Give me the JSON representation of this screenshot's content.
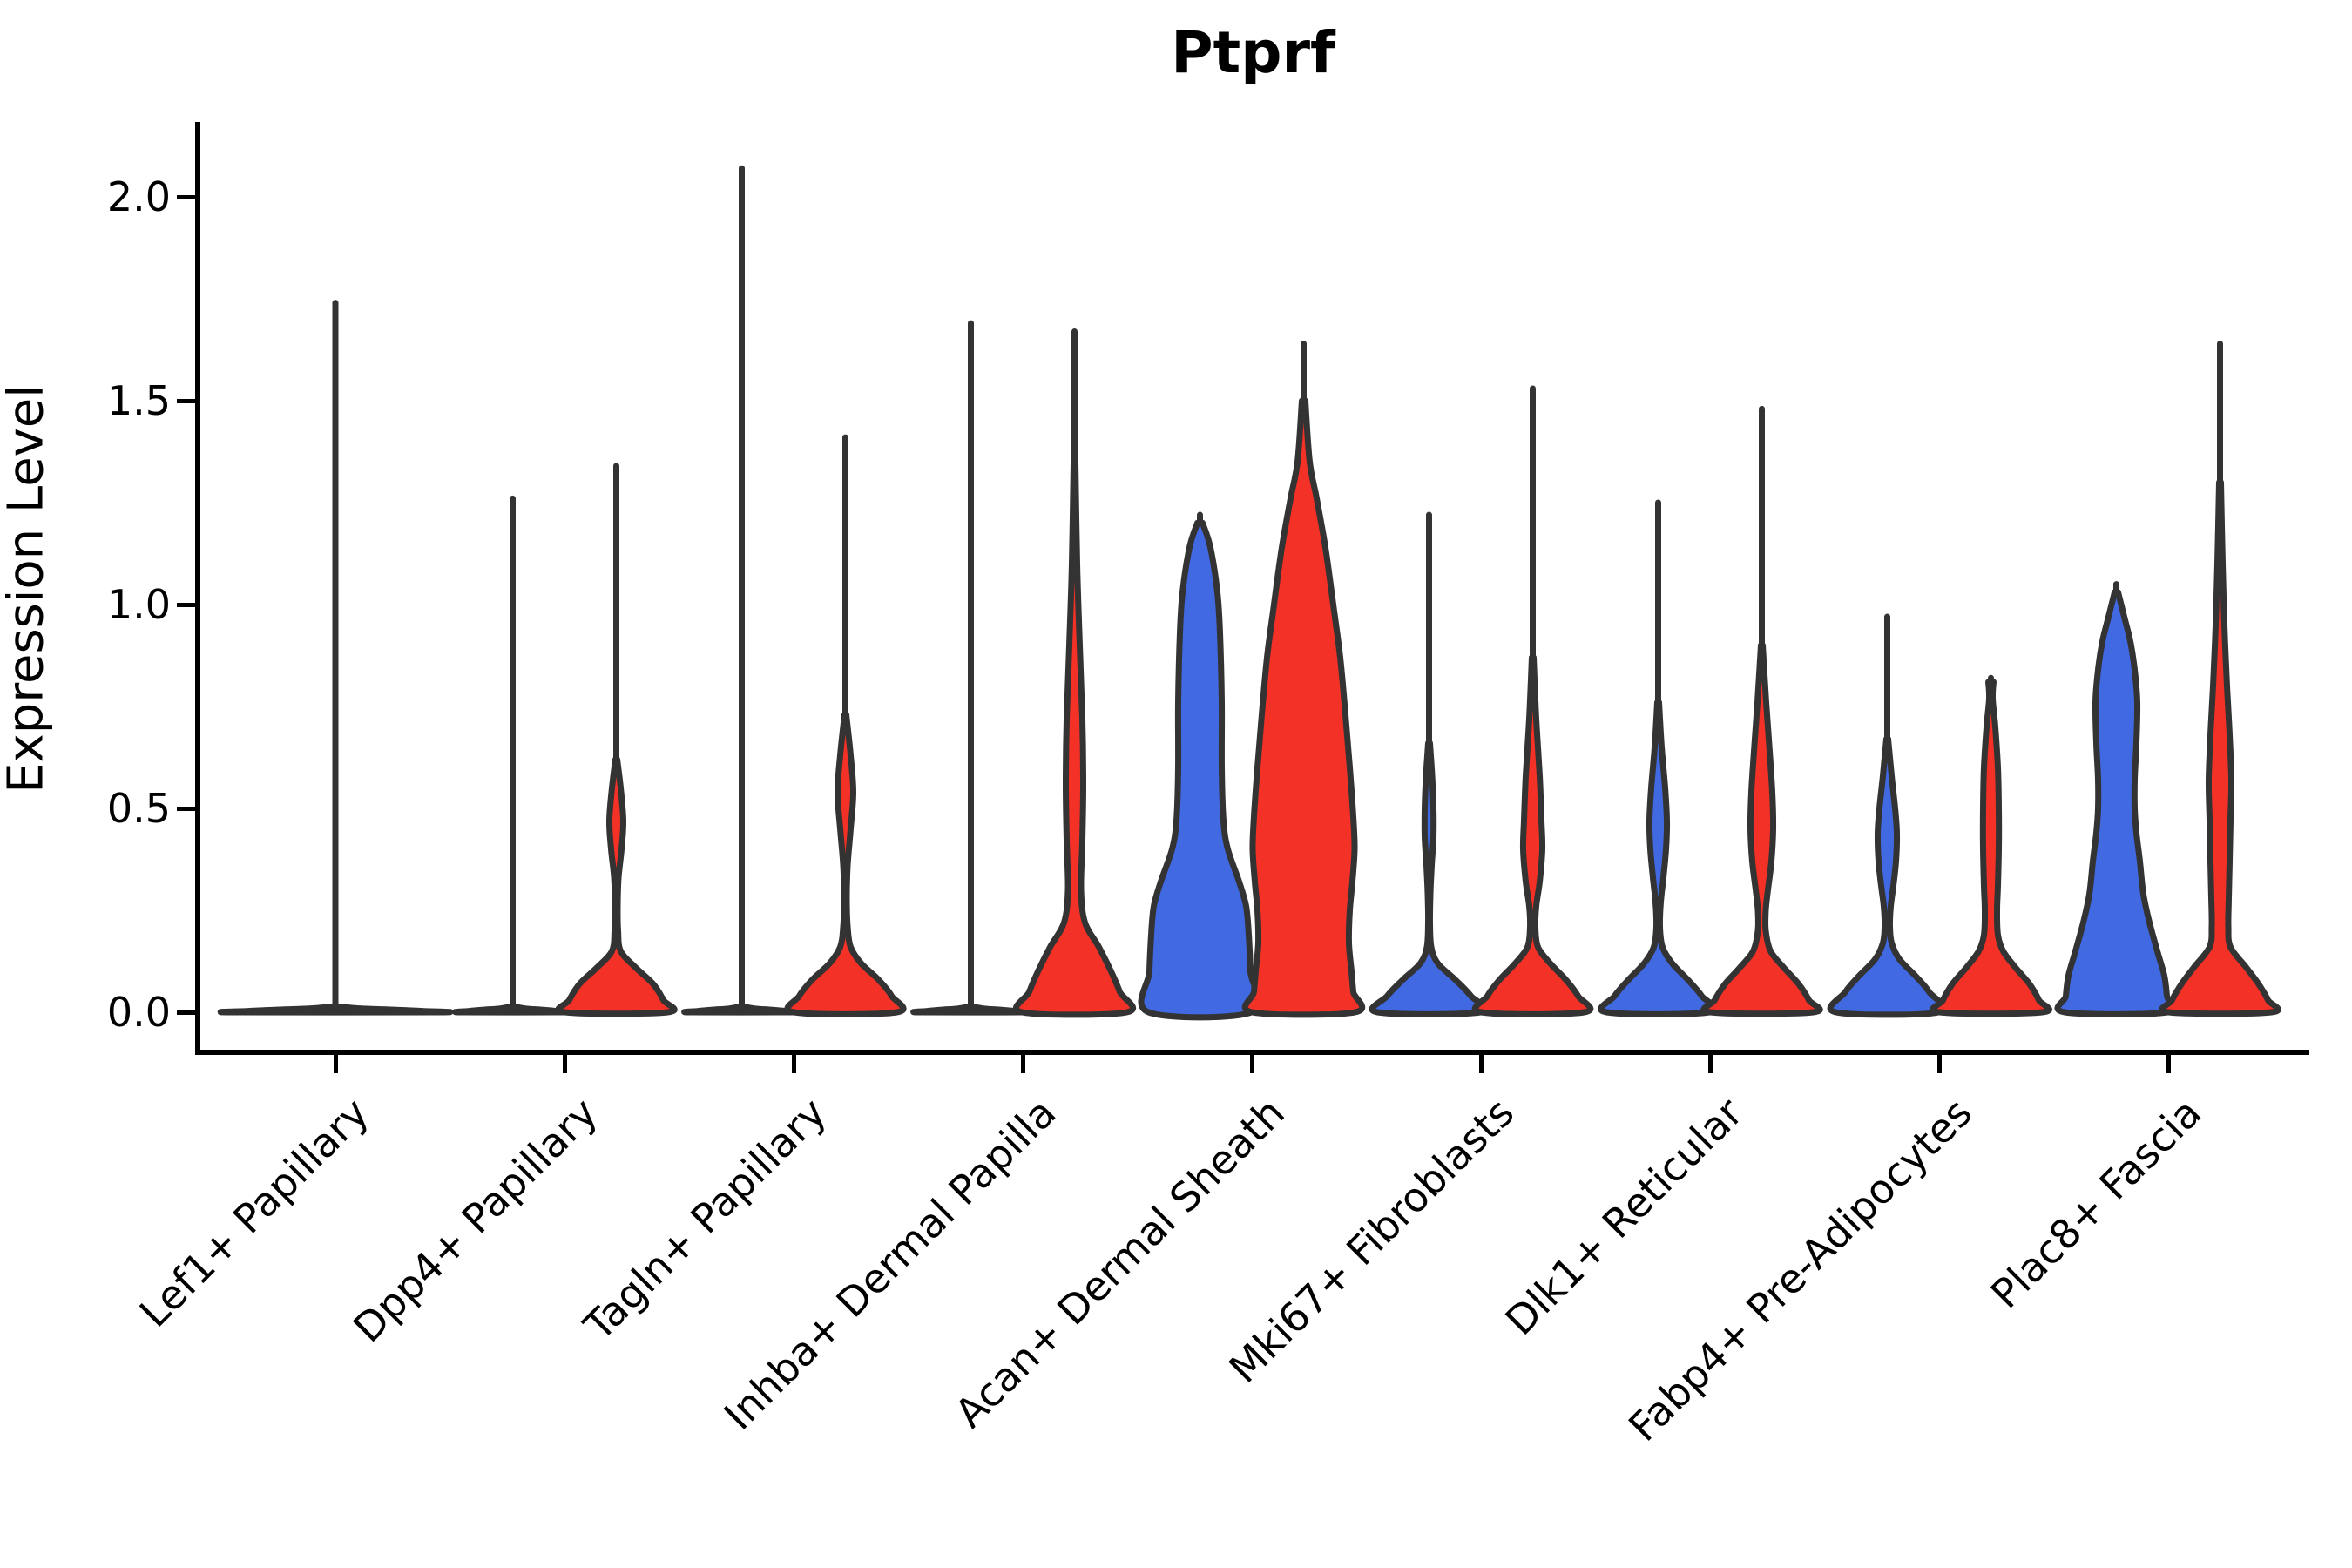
{
  "title": "Ptprf",
  "axes": {
    "y_label": "Expression Level",
    "y_ticks": [
      "0.0",
      "0.5",
      "1.0",
      "1.5",
      "2.0"
    ],
    "y_tick_values": [
      0.0,
      0.5,
      1.0,
      1.5,
      2.0
    ],
    "x_categories": [
      "Lef1+ Papillary",
      "Dpp4+ Papillary",
      "Tagln+ Papillary",
      "Inhba+ Dermal Papilla",
      "Acan+ Dermal Sheath",
      "Mki67+ Fibroblasts",
      "Dlk1+ Reticular",
      "Fabp4+ Pre-Adipocytes",
      "Plac8+ Fascia"
    ]
  },
  "colors": {
    "blue_fill": "#4169E1",
    "red_fill": "#F43127",
    "outline": "#333333",
    "axis": "#000000"
  },
  "chart_data": {
    "type": "violin",
    "title": "Ptprf",
    "ylabel": "Expression Level",
    "ylim": [
      0,
      2.18
    ],
    "grid": false,
    "legend": "none",
    "categories": [
      "Lef1+ Papillary",
      "Dpp4+ Papillary",
      "Tagln+ Papillary",
      "Inhba+ Dermal Papilla",
      "Acan+ Dermal Sheath",
      "Mki67+ Fibroblasts",
      "Dlk1+ Reticular",
      "Fabp4+ Pre-Adipocytes",
      "Plac8+ Fascia"
    ],
    "series": [
      {
        "name": "group-blue",
        "color": "#4169E1",
        "max_expression": [
          1.74,
          1.26,
          2.07,
          1.69,
          1.22,
          1.22,
          1.25,
          0.97,
          1.05
        ]
      },
      {
        "name": "group-red",
        "color": "#F43127",
        "max_expression": [
          1.74,
          1.34,
          1.41,
          1.67,
          1.64,
          1.53,
          1.48,
          0.82,
          1.64
        ]
      }
    ],
    "violins": [
      {
        "cat": 0,
        "group": "single",
        "stem_top": 1.74,
        "profile": [
          [
            0.014,
            2
          ],
          [
            0.009,
            30
          ],
          [
            0.006,
            70
          ],
          [
            0.003,
            100
          ],
          [
            0,
            118
          ]
        ]
      },
      {
        "cat": 1,
        "group": "blue",
        "stem_top": 1.26,
        "profile": [
          [
            0.014,
            1.5
          ],
          [
            0.009,
            15
          ],
          [
            0.006,
            35
          ],
          [
            0.003,
            50
          ],
          [
            0,
            59
          ]
        ]
      },
      {
        "cat": 1,
        "group": "red",
        "stem_top": 1.34,
        "profile": [
          [
            0.62,
            1
          ],
          [
            0.55,
            5
          ],
          [
            0.47,
            8
          ],
          [
            0.4,
            6
          ],
          [
            0.33,
            2.5
          ],
          [
            0.26,
            1.5
          ],
          [
            0.2,
            2
          ],
          [
            0.15,
            5
          ],
          [
            0.11,
            22
          ],
          [
            0.07,
            42
          ],
          [
            0.03,
            54
          ],
          [
            0,
            59
          ]
        ]
      },
      {
        "cat": 2,
        "group": "blue",
        "stem_top": 2.07,
        "profile": [
          [
            0.014,
            1.5
          ],
          [
            0.009,
            15
          ],
          [
            0.006,
            35
          ],
          [
            0.003,
            50
          ],
          [
            0,
            59
          ]
        ]
      },
      {
        "cat": 2,
        "group": "red",
        "stem_top": 1.41,
        "profile": [
          [
            0.73,
            1
          ],
          [
            0.63,
            6
          ],
          [
            0.54,
            9
          ],
          [
            0.45,
            6
          ],
          [
            0.36,
            2.5
          ],
          [
            0.28,
            1.5
          ],
          [
            0.21,
            2.5
          ],
          [
            0.16,
            6
          ],
          [
            0.12,
            18
          ],
          [
            0.08,
            38
          ],
          [
            0.04,
            53
          ],
          [
            0,
            59
          ]
        ]
      },
      {
        "cat": 3,
        "group": "blue",
        "stem_top": 1.69,
        "profile": [
          [
            0.014,
            1.5
          ],
          [
            0.009,
            15
          ],
          [
            0.006,
            35
          ],
          [
            0.003,
            50
          ],
          [
            0,
            59
          ]
        ]
      },
      {
        "cat": 3,
        "group": "red",
        "stem_top": 1.67,
        "profile": [
          [
            1.35,
            1
          ],
          [
            1.1,
            3
          ],
          [
            0.9,
            6
          ],
          [
            0.72,
            9
          ],
          [
            0.56,
            10
          ],
          [
            0.42,
            9
          ],
          [
            0.3,
            7.5
          ],
          [
            0.22,
            12
          ],
          [
            0.16,
            28
          ],
          [
            0.1,
            42
          ],
          [
            0.05,
            52
          ],
          [
            0,
            60
          ]
        ]
      },
      {
        "cat": 4,
        "group": "blue",
        "stem_top": 1.22,
        "profile": [
          [
            1.2,
            3
          ],
          [
            1.14,
            12
          ],
          [
            1.03,
            20
          ],
          [
            0.93,
            23
          ],
          [
            0.76,
            25
          ],
          [
            0.6,
            25
          ],
          [
            0.47,
            27
          ],
          [
            0.4,
            32
          ],
          [
            0.32,
            45
          ],
          [
            0.26,
            53
          ],
          [
            0.19,
            56
          ],
          [
            0.1,
            58
          ],
          [
            0,
            59
          ]
        ]
      },
      {
        "cat": 4,
        "group": "red",
        "stem_top": 1.64,
        "profile": [
          [
            1.5,
            2
          ],
          [
            1.35,
            7
          ],
          [
            1.26,
            15
          ],
          [
            1.14,
            25
          ],
          [
            1.0,
            34
          ],
          [
            0.87,
            42
          ],
          [
            0.73,
            48
          ],
          [
            0.6,
            53
          ],
          [
            0.48,
            57
          ],
          [
            0.4,
            58.5
          ],
          [
            0.32,
            56
          ],
          [
            0.25,
            53
          ],
          [
            0.17,
            52
          ],
          [
            0.1,
            55
          ],
          [
            0.05,
            57
          ],
          [
            0,
            59
          ]
        ]
      },
      {
        "cat": 5,
        "group": "blue",
        "stem_top": 1.22,
        "profile": [
          [
            0.66,
            1
          ],
          [
            0.58,
            3.5
          ],
          [
            0.5,
            5
          ],
          [
            0.43,
            5
          ],
          [
            0.36,
            3
          ],
          [
            0.29,
            1.5
          ],
          [
            0.22,
            1
          ],
          [
            0.16,
            2.5
          ],
          [
            0.12,
            10
          ],
          [
            0.08,
            30
          ],
          [
            0.04,
            48
          ],
          [
            0,
            59
          ]
        ]
      },
      {
        "cat": 5,
        "group": "red",
        "stem_top": 1.53,
        "profile": [
          [
            0.87,
            1
          ],
          [
            0.72,
            4
          ],
          [
            0.58,
            8
          ],
          [
            0.47,
            10
          ],
          [
            0.4,
            11
          ],
          [
            0.32,
            8
          ],
          [
            0.26,
            4
          ],
          [
            0.21,
            3
          ],
          [
            0.16,
            6
          ],
          [
            0.12,
            20
          ],
          [
            0.08,
            38
          ],
          [
            0.04,
            52
          ],
          [
            0,
            59
          ]
        ]
      },
      {
        "cat": 6,
        "group": "blue",
        "stem_top": 1.25,
        "profile": [
          [
            0.76,
            1
          ],
          [
            0.65,
            4
          ],
          [
            0.55,
            8
          ],
          [
            0.47,
            10
          ],
          [
            0.4,
            9
          ],
          [
            0.33,
            6
          ],
          [
            0.27,
            3
          ],
          [
            0.21,
            2
          ],
          [
            0.16,
            5
          ],
          [
            0.12,
            16
          ],
          [
            0.08,
            34
          ],
          [
            0.04,
            50
          ],
          [
            0,
            59
          ]
        ]
      },
      {
        "cat": 6,
        "group": "red",
        "stem_top": 1.48,
        "profile": [
          [
            0.9,
            1
          ],
          [
            0.76,
            5
          ],
          [
            0.64,
            9
          ],
          [
            0.54,
            12
          ],
          [
            0.45,
            13
          ],
          [
            0.37,
            11
          ],
          [
            0.3,
            7
          ],
          [
            0.25,
            4.5
          ],
          [
            0.2,
            4.5
          ],
          [
            0.15,
            10
          ],
          [
            0.11,
            25
          ],
          [
            0.07,
            42
          ],
          [
            0.03,
            54
          ],
          [
            0,
            59
          ]
        ]
      },
      {
        "cat": 7,
        "group": "blue",
        "stem_top": 0.97,
        "profile": [
          [
            0.67,
            1
          ],
          [
            0.58,
            5
          ],
          [
            0.5,
            9
          ],
          [
            0.44,
            11
          ],
          [
            0.37,
            10
          ],
          [
            0.31,
            7
          ],
          [
            0.26,
            4
          ],
          [
            0.21,
            3
          ],
          [
            0.17,
            5
          ],
          [
            0.13,
            14
          ],
          [
            0.09,
            32
          ],
          [
            0.05,
            48
          ],
          [
            0,
            59
          ]
        ]
      },
      {
        "cat": 7,
        "group": "red",
        "stem_top": 0.82,
        "profile": [
          [
            0.81,
            3
          ],
          [
            0.77,
            2
          ],
          [
            0.7,
            5
          ],
          [
            0.6,
            8
          ],
          [
            0.5,
            9
          ],
          [
            0.4,
            9
          ],
          [
            0.31,
            8
          ],
          [
            0.25,
            7
          ],
          [
            0.19,
            8
          ],
          [
            0.15,
            14
          ],
          [
            0.11,
            28
          ],
          [
            0.07,
            44
          ],
          [
            0.03,
            55
          ],
          [
            0,
            59
          ]
        ]
      },
      {
        "cat": 8,
        "group": "blue",
        "stem_top": 1.05,
        "profile": [
          [
            1.03,
            2
          ],
          [
            0.97,
            9
          ],
          [
            0.91,
            16
          ],
          [
            0.84,
            21
          ],
          [
            0.76,
            24
          ],
          [
            0.66,
            23
          ],
          [
            0.57,
            21
          ],
          [
            0.5,
            21
          ],
          [
            0.44,
            23
          ],
          [
            0.37,
            27
          ],
          [
            0.29,
            31
          ],
          [
            0.22,
            38
          ],
          [
            0.15,
            47
          ],
          [
            0.09,
            55
          ],
          [
            0.04,
            58
          ],
          [
            0,
            59
          ]
        ]
      },
      {
        "cat": 8,
        "group": "red",
        "stem_top": 1.64,
        "profile": [
          [
            1.3,
            1
          ],
          [
            1.1,
            3
          ],
          [
            0.95,
            5
          ],
          [
            0.8,
            8
          ],
          [
            0.68,
            11
          ],
          [
            0.57,
            13
          ],
          [
            0.47,
            12
          ],
          [
            0.37,
            11
          ],
          [
            0.28,
            10
          ],
          [
            0.21,
            9.5
          ],
          [
            0.16,
            12
          ],
          [
            0.11,
            30
          ],
          [
            0.07,
            44
          ],
          [
            0.03,
            55
          ],
          [
            0,
            59
          ]
        ]
      }
    ]
  }
}
